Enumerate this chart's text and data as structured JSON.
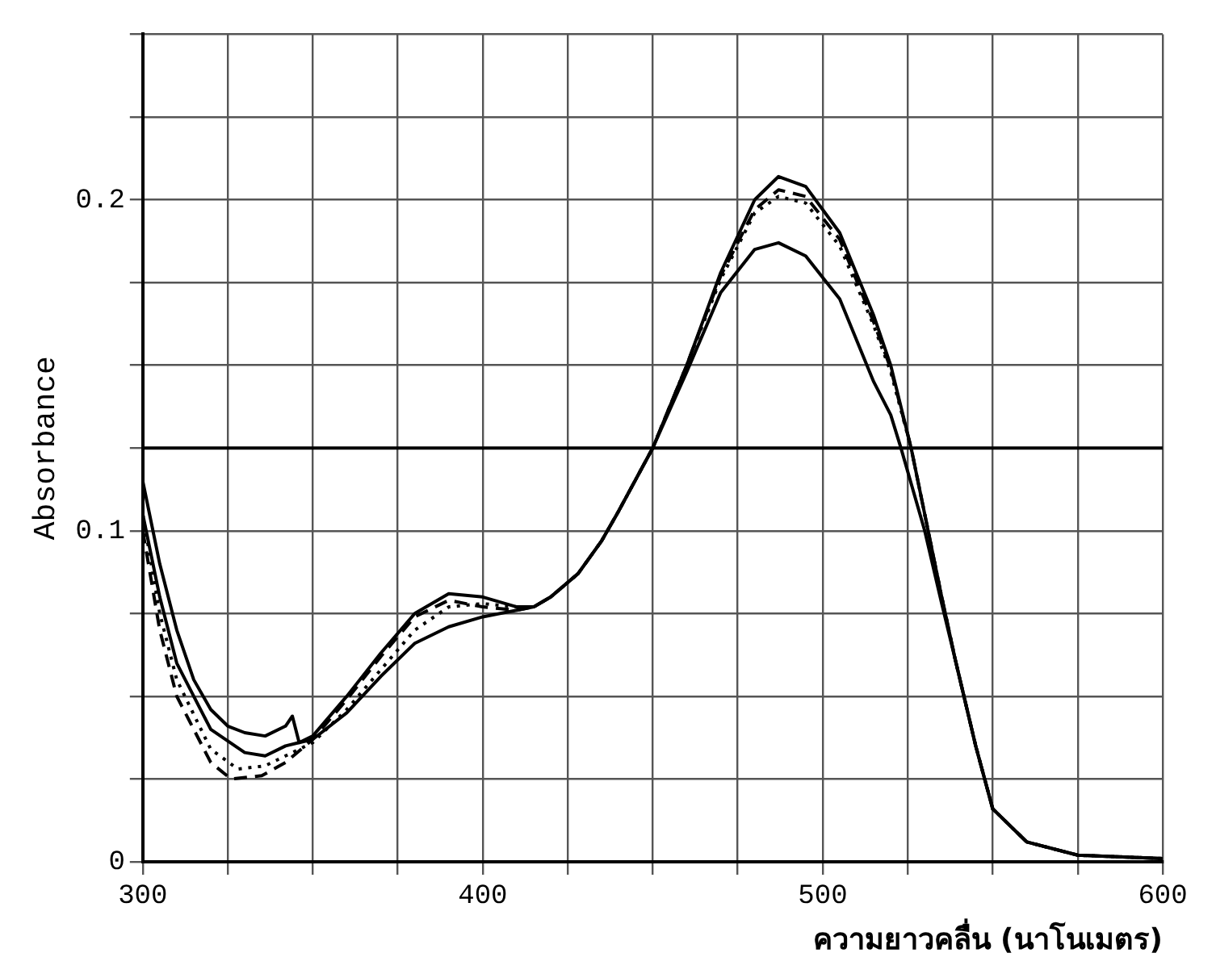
{
  "chart_data": {
    "type": "line",
    "xlabel": "ความยาวคลื่น (นาโนเมตร)",
    "ylabel": "Absorbance",
    "xlim": [
      300,
      600
    ],
    "ylim": [
      0,
      0.25
    ],
    "xticks": [
      300,
      {
        "value": 325,
        "label": null
      },
      {
        "value": 350,
        "label": null
      },
      {
        "value": 375,
        "label": null
      },
      400,
      {
        "value": 425,
        "label": null
      },
      {
        "value": 450,
        "label": null
      },
      {
        "value": 475,
        "label": null
      },
      500,
      {
        "value": 525,
        "label": null
      },
      {
        "value": 550,
        "label": null
      },
      {
        "value": 575,
        "label": null
      },
      600
    ],
    "yticks": [
      0,
      {
        "value": 0.025,
        "label": null
      },
      {
        "value": 0.05,
        "label": null
      },
      {
        "value": 0.075,
        "label": null
      },
      0.1,
      {
        "value": 0.125,
        "label": null
      },
      {
        "value": 0.15,
        "label": null
      },
      {
        "value": 0.175,
        "label": null
      },
      0.2,
      {
        "value": 0.225,
        "label": null
      },
      {
        "value": 0.25,
        "label": null
      }
    ],
    "grid": true,
    "ref_lines": [
      {
        "axis": "y",
        "value": 0.125,
        "color": "#000000"
      }
    ],
    "series": [
      {
        "color": "#000000",
        "line_style": "solid",
        "x": [
          300,
          305,
          310,
          315,
          320,
          325,
          330,
          336,
          342,
          344,
          346,
          350,
          360,
          370,
          380,
          390,
          400,
          410,
          415,
          420,
          428,
          435,
          440,
          450,
          460,
          470,
          480,
          487,
          495,
          505,
          515,
          520,
          526,
          530,
          535,
          539,
          545,
          550,
          560,
          575,
          600
        ],
        "values": [
          0.115,
          0.09,
          0.07,
          0.055,
          0.046,
          0.041,
          0.039,
          0.038,
          0.041,
          0.044,
          0.036,
          0.038,
          0.05,
          0.063,
          0.075,
          0.081,
          0.08,
          0.077,
          0.077,
          0.08,
          0.087,
          0.097,
          0.106,
          0.125,
          0.15,
          0.178,
          0.2,
          0.207,
          0.204,
          0.19,
          0.165,
          0.15,
          0.125,
          0.105,
          0.08,
          0.061,
          0.035,
          0.016,
          0.006,
          0.002,
          0.001
        ]
      },
      {
        "color": "#000000",
        "line_style": "solid",
        "x": [
          300,
          305,
          310,
          320,
          330,
          336,
          342,
          346,
          350,
          360,
          370,
          380,
          390,
          400,
          410,
          415,
          420,
          428,
          435,
          440,
          450,
          460,
          470,
          480,
          487,
          495,
          505,
          515,
          520,
          523,
          530,
          535,
          539,
          545,
          550,
          560,
          575,
          600
        ],
        "values": [
          0.105,
          0.08,
          0.06,
          0.04,
          0.033,
          0.032,
          0.035,
          0.036,
          0.037,
          0.045,
          0.056,
          0.066,
          0.071,
          0.074,
          0.076,
          0.077,
          0.08,
          0.087,
          0.097,
          0.106,
          0.125,
          0.148,
          0.172,
          0.185,
          0.187,
          0.183,
          0.17,
          0.145,
          0.135,
          0.125,
          0.1,
          0.078,
          0.061,
          0.035,
          0.016,
          0.006,
          0.002,
          0.001
        ]
      },
      {
        "color": "#000000",
        "line_style": "dashed",
        "x": [
          300,
          305,
          310,
          320,
          326,
          335,
          342,
          350,
          360,
          370,
          380,
          390,
          400,
          410,
          415,
          420,
          428,
          435,
          440,
          450,
          460,
          470,
          480,
          487,
          495,
          505,
          515,
          520,
          526,
          530,
          535,
          539,
          545,
          550,
          560,
          575,
          600
        ],
        "values": [
          0.1,
          0.07,
          0.05,
          0.03,
          0.025,
          0.026,
          0.03,
          0.037,
          0.049,
          0.062,
          0.074,
          0.079,
          0.077,
          0.076,
          0.077,
          0.08,
          0.087,
          0.097,
          0.106,
          0.125,
          0.15,
          0.177,
          0.197,
          0.203,
          0.201,
          0.188,
          0.163,
          0.149,
          0.125,
          0.105,
          0.08,
          0.061,
          0.035,
          0.016,
          0.006,
          0.002,
          0.001
        ]
      },
      {
        "color": "#000000",
        "line_style": "dotted",
        "x": [
          300,
          305,
          310,
          320,
          328,
          336,
          344,
          350,
          360,
          370,
          380,
          390,
          400,
          410,
          415,
          420,
          428,
          435,
          440,
          450,
          460,
          470,
          480,
          487,
          495,
          505,
          515,
          520,
          526,
          530,
          535,
          539,
          545,
          550,
          560,
          575,
          600
        ],
        "values": [
          0.105,
          0.075,
          0.055,
          0.034,
          0.028,
          0.029,
          0.033,
          0.036,
          0.046,
          0.058,
          0.07,
          0.077,
          0.078,
          0.077,
          0.077,
          0.08,
          0.087,
          0.097,
          0.106,
          0.125,
          0.15,
          0.176,
          0.196,
          0.201,
          0.199,
          0.186,
          0.162,
          0.148,
          0.125,
          0.105,
          0.08,
          0.061,
          0.035,
          0.016,
          0.006,
          0.002,
          0.001
        ]
      }
    ]
  }
}
